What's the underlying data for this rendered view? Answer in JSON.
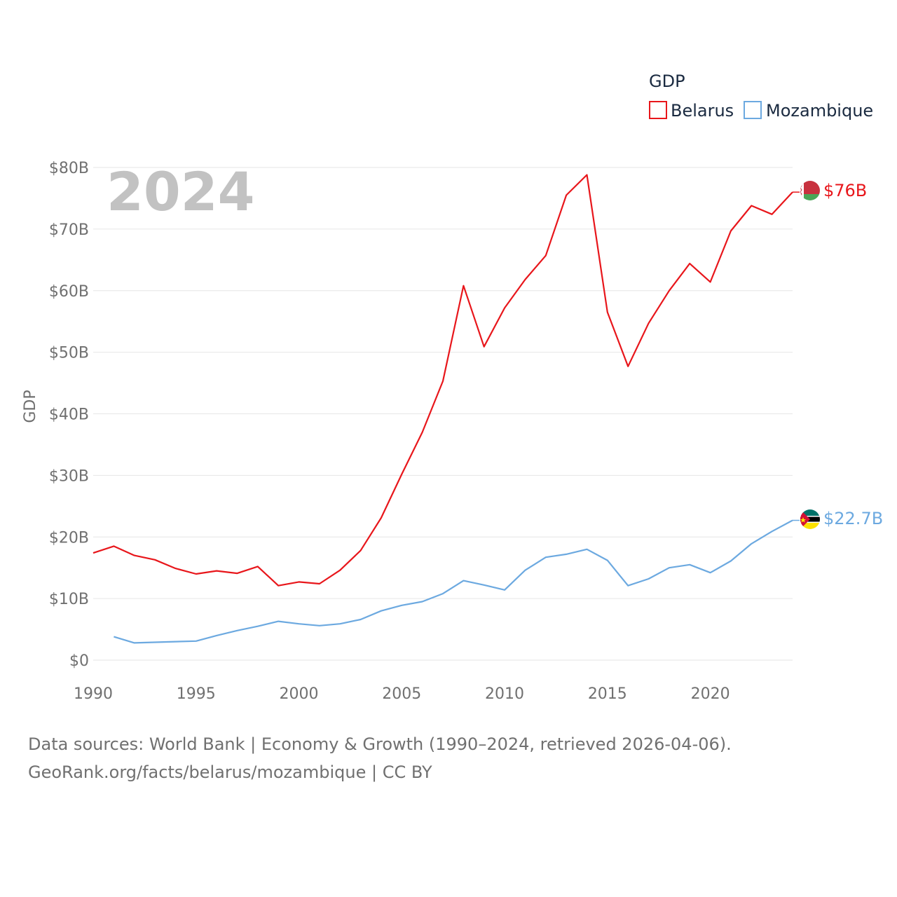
{
  "chart_data": {
    "type": "line",
    "legend_title": "GDP",
    "year_label": "2024",
    "ylabel": "GDP",
    "xlim": [
      1990,
      2024
    ],
    "ylim": [
      0,
      80
    ],
    "x_ticks": [
      "1990",
      "1995",
      "2000",
      "2005",
      "2010",
      "2015",
      "2020"
    ],
    "y_ticks": [
      "$0",
      "$10B",
      "$20B",
      "$30B",
      "$40B",
      "$50B",
      "$60B",
      "$70B",
      "$80B"
    ],
    "series": [
      {
        "name": "Belarus",
        "color": "#e8161b",
        "end_label": "$76B",
        "flag_icon": "belarus-flag-icon",
        "x": [
          1990,
          1991,
          1992,
          1993,
          1994,
          1995,
          1996,
          1997,
          1998,
          1999,
          2000,
          2001,
          2002,
          2003,
          2004,
          2005,
          2006,
          2007,
          2008,
          2009,
          2010,
          2011,
          2012,
          2013,
          2014,
          2015,
          2016,
          2017,
          2018,
          2019,
          2020,
          2021,
          2022,
          2023,
          2024
        ],
        "values": [
          17.4,
          18.5,
          17.0,
          16.3,
          14.9,
          14.0,
          14.5,
          14.1,
          15.2,
          12.1,
          12.7,
          12.4,
          14.6,
          17.8,
          23.1,
          30.2,
          37.0,
          45.3,
          60.8,
          50.9,
          57.2,
          61.8,
          65.7,
          75.5,
          78.8,
          56.5,
          47.7,
          54.7,
          60.0,
          64.4,
          61.4,
          69.7,
          73.8,
          72.4,
          76.0
        ]
      },
      {
        "name": "Mozambique",
        "color": "#6ca9e0",
        "end_label": "$22.7B",
        "flag_icon": "mozambique-flag-icon",
        "x": [
          1991,
          1992,
          1993,
          1994,
          1995,
          1996,
          1997,
          1998,
          1999,
          2000,
          2001,
          2002,
          2003,
          2004,
          2005,
          2006,
          2007,
          2008,
          2009,
          2010,
          2011,
          2012,
          2013,
          2014,
          2015,
          2016,
          2017,
          2018,
          2019,
          2020,
          2021,
          2022,
          2023,
          2024
        ],
        "values": [
          3.8,
          2.8,
          2.9,
          3.0,
          3.1,
          4.0,
          4.8,
          5.5,
          6.3,
          5.9,
          5.6,
          5.9,
          6.6,
          8.0,
          8.9,
          9.5,
          10.8,
          12.9,
          12.2,
          11.4,
          14.6,
          16.7,
          17.2,
          18.0,
          16.2,
          12.1,
          13.2,
          15.0,
          15.5,
          14.2,
          16.1,
          18.9,
          20.9,
          22.7
        ]
      }
    ]
  },
  "footer": {
    "line1": "Data sources: World Bank | Economy & Growth (1990–2024, retrieved 2026-04-06).",
    "line2": "GeoRank.org/facts/belarus/mozambique | CC BY"
  }
}
